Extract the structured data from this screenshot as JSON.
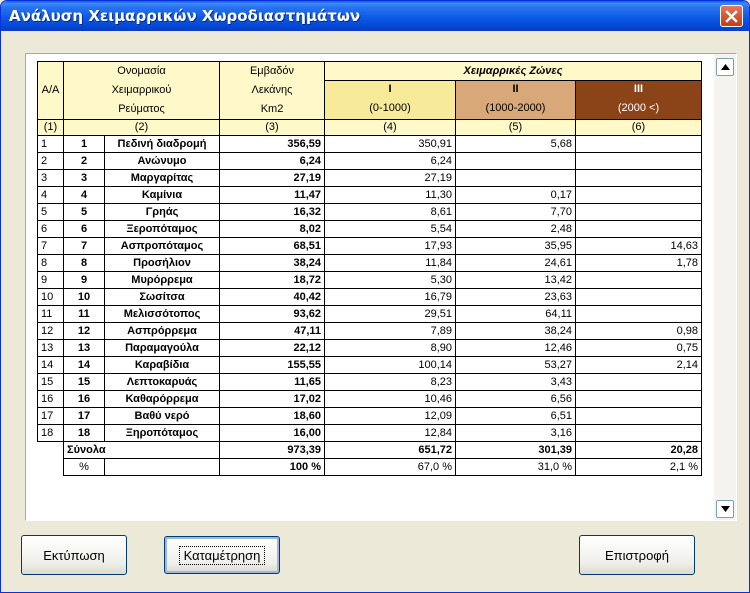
{
  "window": {
    "title": "Ανάλυση Χειμαρρικών Χωροδιαστημάτων"
  },
  "table": {
    "headers": {
      "aa": "Α/Α",
      "name_lines": [
        "Ονομασία",
        "Χειμαρρικού",
        "Ρεύματος"
      ],
      "area_lines": [
        "Εμβαδόν",
        "Λεκάνης",
        "Km2"
      ],
      "zones_title": "Χειμαρρικές Ζώνες",
      "zones": [
        {
          "roman": "I",
          "range": "(0-1000)"
        },
        {
          "roman": "II",
          "range": "(1000-2000)"
        },
        {
          "roman": "III",
          "range": "(2000 <)"
        }
      ],
      "col_numbers": [
        "(1)",
        "(2)",
        "(3)",
        "(4)",
        "(5)",
        "(6)"
      ]
    },
    "rows": [
      {
        "aa": "1",
        "num": "1",
        "name": "Πεδινή διαδρομή",
        "area": "356,59",
        "z1": "350,91",
        "z2": "5,68",
        "z3": ""
      },
      {
        "aa": "2",
        "num": "2",
        "name": "Ανώνυμο",
        "area": "6,24",
        "z1": "6,24",
        "z2": "",
        "z3": ""
      },
      {
        "aa": "3",
        "num": "3",
        "name": "Μαργαρίτας",
        "area": "27,19",
        "z1": "27,19",
        "z2": "",
        "z3": ""
      },
      {
        "aa": "4",
        "num": "4",
        "name": "Καμίνια",
        "area": "11,47",
        "z1": "11,30",
        "z2": "0,17",
        "z3": ""
      },
      {
        "aa": "5",
        "num": "5",
        "name": "Γρηάς",
        "area": "16,32",
        "z1": "8,61",
        "z2": "7,70",
        "z3": ""
      },
      {
        "aa": "6",
        "num": "6",
        "name": "Ξεροπόταμος",
        "area": "8,02",
        "z1": "5,54",
        "z2": "2,48",
        "z3": ""
      },
      {
        "aa": "7",
        "num": "7",
        "name": "Ασπροπόταμος",
        "area": "68,51",
        "z1": "17,93",
        "z2": "35,95",
        "z3": "14,63"
      },
      {
        "aa": "8",
        "num": "8",
        "name": "Προσήλιον",
        "area": "38,24",
        "z1": "11,84",
        "z2": "24,61",
        "z3": "1,78"
      },
      {
        "aa": "9",
        "num": "9",
        "name": "Μυρόρρεμα",
        "area": "18,72",
        "z1": "5,30",
        "z2": "13,42",
        "z3": ""
      },
      {
        "aa": "10",
        "num": "10",
        "name": "Σωσίτσα",
        "area": "40,42",
        "z1": "16,79",
        "z2": "23,63",
        "z3": ""
      },
      {
        "aa": "11",
        "num": "11",
        "name": "Μελισσότοπος",
        "area": "93,62",
        "z1": "29,51",
        "z2": "64,11",
        "z3": ""
      },
      {
        "aa": "12",
        "num": "12",
        "name": "Ασπρόρρεμα",
        "area": "47,11",
        "z1": "7,89",
        "z2": "38,24",
        "z3": "0,98"
      },
      {
        "aa": "13",
        "num": "13",
        "name": "Παραμαγούλα",
        "area": "22,12",
        "z1": "8,90",
        "z2": "12,46",
        "z3": "0,75"
      },
      {
        "aa": "14",
        "num": "14",
        "name": "Καραβίδια",
        "area": "155,55",
        "z1": "100,14",
        "z2": "53,27",
        "z3": "2,14"
      },
      {
        "aa": "15",
        "num": "15",
        "name": "Λεπτοκαρυάς",
        "area": "11,65",
        "z1": "8,23",
        "z2": "3,43",
        "z3": ""
      },
      {
        "aa": "16",
        "num": "16",
        "name": "Καθαρόρρεμα",
        "area": "17,02",
        "z1": "10,46",
        "z2": "6,56",
        "z3": ""
      },
      {
        "aa": "17",
        "num": "17",
        "name": "Βαθύ νερό",
        "area": "18,60",
        "z1": "12,09",
        "z2": "6,51",
        "z3": ""
      },
      {
        "aa": "18",
        "num": "18",
        "name": "Ξηροπόταμος",
        "area": "16,00",
        "z1": "12,84",
        "z2": "3,16",
        "z3": ""
      }
    ],
    "totals": {
      "label": "Σύνολα",
      "area": "973,39",
      "z1": "651,72",
      "z2": "301,39",
      "z3": "20,28"
    },
    "percent": {
      "label": "%",
      "area": "100 %",
      "z1": "67,0 %",
      "z2": "31,0 %",
      "z3": "2,1 %"
    },
    "zone_colors": {
      "z1": "#f7eb9a",
      "z2": "#d8a878",
      "z3": "#8a4418"
    }
  },
  "buttons": {
    "print": "Εκτύπωση",
    "count": "Καταμέτρηση",
    "back": "Επιστροφή"
  }
}
